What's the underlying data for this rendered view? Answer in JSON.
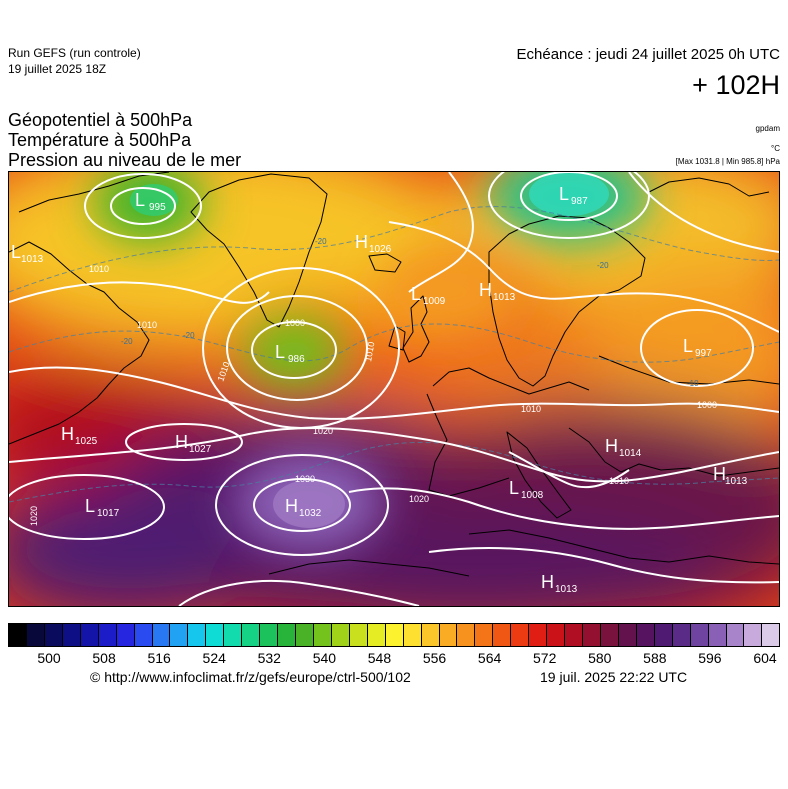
{
  "header": {
    "run_label": "Run GEFS (run controle)",
    "run_date": "19 juillet 2025 18Z",
    "valid_time": "Echéance : jeudi 24 juillet 2025 0h UTC",
    "forecast_step": "+ 102H"
  },
  "titles": {
    "line1": "Géopotentiel à 500hPa",
    "line2": "Température à 500hPa",
    "line3": "Pression au niveau de le mer"
  },
  "units": {
    "geopotential": "gpdam",
    "temperature": "°C",
    "pressure_extremes": "[Max 1031.8 | Min 985.8] hPa"
  },
  "pressure_systems": [
    {
      "type": "L",
      "value": "995"
    },
    {
      "type": "L",
      "value": "987"
    },
    {
      "type": "L",
      "value": "986"
    },
    {
      "type": "H",
      "value": "1026"
    },
    {
      "type": "L",
      "value": "1009"
    },
    {
      "type": "H",
      "value": "1013"
    },
    {
      "type": "L",
      "value": "1013"
    },
    {
      "type": "L",
      "value": "997"
    },
    {
      "type": "H",
      "value": "1025"
    },
    {
      "type": "H",
      "value": "1027"
    },
    {
      "type": "L",
      "value": "1017"
    },
    {
      "type": "H",
      "value": "1032"
    },
    {
      "type": "L",
      "value": "1008"
    },
    {
      "type": "H",
      "value": "1014"
    },
    {
      "type": "H",
      "value": "1013"
    },
    {
      "type": "H",
      "value": "1013"
    }
  ],
  "isobar_labels": [
    "1010",
    "1010",
    "1010",
    "1000",
    "1010",
    "1020",
    "1030",
    "1020",
    "1010",
    "1010",
    "1000",
    "1020"
  ],
  "temperature_labels": [
    "-20",
    "-20",
    "-20",
    "-10",
    "-20"
  ],
  "color_scale": {
    "unit": "gpdam",
    "colors": [
      "#000000",
      "#08083a",
      "#0b0b5e",
      "#0f0f85",
      "#1414a8",
      "#1c1cc9",
      "#2626e0",
      "#2a4bf0",
      "#2878f4",
      "#22a2f2",
      "#16c6ec",
      "#10dcd6",
      "#12dcae",
      "#16d285",
      "#1cc25c",
      "#28b43a",
      "#4ab226",
      "#74c21c",
      "#a0d21a",
      "#c8e01e",
      "#e6ec24",
      "#fcf22e",
      "#fde030",
      "#fbc62a",
      "#f9ac24",
      "#f7921e",
      "#f47418",
      "#f05614",
      "#ec3a12",
      "#e01e14",
      "#ca1218",
      "#b00e22",
      "#941030",
      "#7a123e",
      "#64124e",
      "#561460",
      "#4e1a72",
      "#5a2c88",
      "#6e44a0",
      "#8a60b6",
      "#a884ca",
      "#c8aadc",
      "#dccbe8"
    ],
    "tick_labels": [
      "500",
      "508",
      "516",
      "524",
      "532",
      "540",
      "548",
      "556",
      "564",
      "572",
      "580",
      "588",
      "596",
      "604"
    ]
  },
  "footer": {
    "source": "© http://www.infoclimat.fr/z/gefs/europe/ctrl-500/102",
    "generated": "19 juil. 2025 22:22 UTC"
  }
}
